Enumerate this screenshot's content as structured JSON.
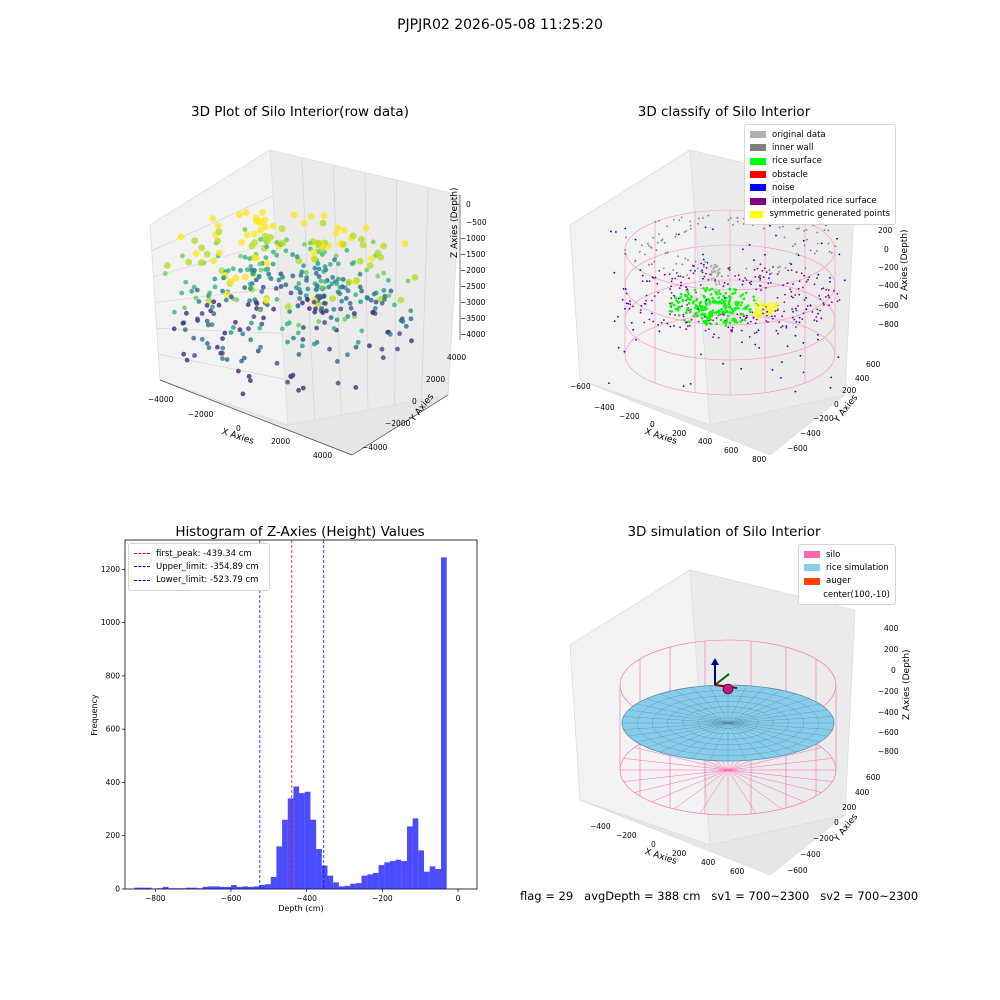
{
  "figure": {
    "suptitle": "PJPJR02 2026-05-08 11:25:20",
    "footer": {
      "flag": "flag = 29",
      "avg_depth": "avgDepth = 388 cm",
      "sv1": "sv1 = 700~2300",
      "sv2": "sv2 = 700~2300"
    }
  },
  "panels": {
    "raw": {
      "title": "3D Plot of Silo Interior(row data)",
      "xlabel": "X Axies",
      "ylabel": "Y Axies",
      "zlabel": "Z Axies (Depth)",
      "xticks": [
        "−4000",
        "−2000",
        "0",
        "2000",
        "4000"
      ],
      "yticks": [
        "−4000",
        "−2000",
        "0",
        "2000",
        "4000"
      ],
      "zticks": [
        "0",
        "−500",
        "−1000",
        "−1500",
        "−2000",
        "−2500",
        "−3000",
        "−3500",
        "−4000"
      ],
      "colormap": "viridis"
    },
    "classify": {
      "title": "3D classify of Silo Interior",
      "xlabel": "X Axies",
      "ylabel": "Y Axies",
      "zlabel": "Z Axies (Depth)",
      "xticks": [
        "−600",
        "−400",
        "−200",
        "0",
        "200",
        "400",
        "600",
        "800"
      ],
      "yticks": [
        "−600",
        "−400",
        "−200",
        "0",
        "200",
        "400",
        "600"
      ],
      "zticks": [
        "200",
        "0",
        "−200",
        "−400",
        "−600",
        "−800"
      ],
      "legend": [
        {
          "label": "original data",
          "color": "#b0b0b0"
        },
        {
          "label": "inner wall",
          "color": "#808080"
        },
        {
          "label": "rice surface",
          "color": "#00ff00"
        },
        {
          "label": "obstacle",
          "color": "#ff0000"
        },
        {
          "label": "noise",
          "color": "#0000ff"
        },
        {
          "label": "interpolated rice surface",
          "color": "#800080"
        },
        {
          "label": "symmetric generated points",
          "color": "#ffff00"
        }
      ]
    },
    "simulation": {
      "title": "3D simulation of Silo Interior",
      "xlabel": "X Axies",
      "ylabel": "Y Axies",
      "zlabel": "Z Axies (Depth)",
      "xticks": [
        "−400",
        "−200",
        "0",
        "200",
        "400",
        "600"
      ],
      "yticks": [
        "−600",
        "−400",
        "−200",
        "0",
        "200",
        "400",
        "600"
      ],
      "zticks": [
        "400",
        "200",
        "0",
        "−200",
        "−400",
        "−600",
        "−800"
      ],
      "legend": [
        {
          "label": "silo",
          "color": "#ff69b4"
        },
        {
          "label": "rice simulation",
          "color": "#87ceeb"
        },
        {
          "label": "auger",
          "color": "#ff4500"
        },
        {
          "label": "center(100,-10)",
          "color": "none"
        }
      ]
    }
  },
  "chart_data": {
    "type": "bar",
    "title": "Histogram of Z-Axies (Height) Values",
    "xlabel": "Depth (cm)",
    "ylabel": "Frequency",
    "xlim": [
      -880,
      50
    ],
    "ylim": [
      0,
      1310
    ],
    "xticks": [
      -800,
      -600,
      -400,
      -200,
      0
    ],
    "xtick_labels": [
      "−800",
      "−600",
      "−400",
      "−200",
      "0"
    ],
    "yticks": [
      0,
      200,
      400,
      600,
      800,
      1000,
      1200
    ],
    "bar_color": "#0000ff",
    "bin_width": 15,
    "bins_start": [
      -855,
      -840,
      -825,
      -810,
      -795,
      -780,
      -765,
      -750,
      -735,
      -720,
      -705,
      -690,
      -675,
      -660,
      -645,
      -630,
      -615,
      -600,
      -585,
      -570,
      -555,
      -540,
      -525,
      -510,
      -495,
      -480,
      -465,
      -450,
      -435,
      -420,
      -405,
      -390,
      -375,
      -360,
      -345,
      -330,
      -315,
      -300,
      -285,
      -270,
      -255,
      -240,
      -225,
      -210,
      -195,
      -180,
      -165,
      -150,
      -135,
      -120,
      -105,
      -90,
      -75,
      -60,
      -45,
      -30,
      -15
    ],
    "values": [
      5,
      5,
      5,
      2,
      3,
      8,
      3,
      3,
      3,
      5,
      5,
      3,
      8,
      10,
      10,
      8,
      8,
      15,
      8,
      10,
      8,
      10,
      15,
      18,
      45,
      160,
      260,
      340,
      385,
      360,
      365,
      260,
      150,
      88,
      50,
      25,
      10,
      12,
      20,
      22,
      50,
      55,
      60,
      90,
      100,
      105,
      110,
      105,
      235,
      265,
      145,
      65,
      85,
      75,
      1245,
      0,
      0
    ],
    "reference_lines": [
      {
        "label": "first_peak: -439.34 cm",
        "x": -439.34,
        "color": "#ff0000"
      },
      {
        "label": "Upper_limit: -354.89 cm",
        "x": -354.89,
        "color": "#0000ff"
      },
      {
        "label": "Lower_limit: -523.79 cm",
        "x": -523.79,
        "color": "#0000ff"
      }
    ],
    "legend_position": "upper-left"
  }
}
